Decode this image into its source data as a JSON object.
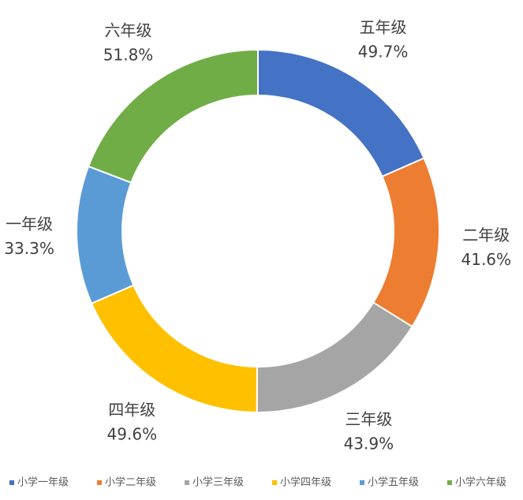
{
  "chart_data": {
    "type": "doughnut",
    "labels": [
      "五年级",
      "二年级",
      "三年级",
      "四年级",
      "一年级",
      "六年级"
    ],
    "values": [
      49.7,
      41.6,
      43.9,
      49.6,
      33.3,
      51.8
    ],
    "value_labels": [
      "49.7%",
      "41.6%",
      "43.9%",
      "49.6%",
      "33.3%",
      "51.8%"
    ],
    "colors": [
      "#4472c4",
      "#ed7d31",
      "#a5a5a5",
      "#ffc000",
      "#5b9bd5",
      "#70ad47"
    ],
    "categories": [
      "小学一年级",
      "小学二年级",
      "小学三年级",
      "小学四年级",
      "小学五年级",
      "小学六年级"
    ],
    "legend": "bottom"
  }
}
